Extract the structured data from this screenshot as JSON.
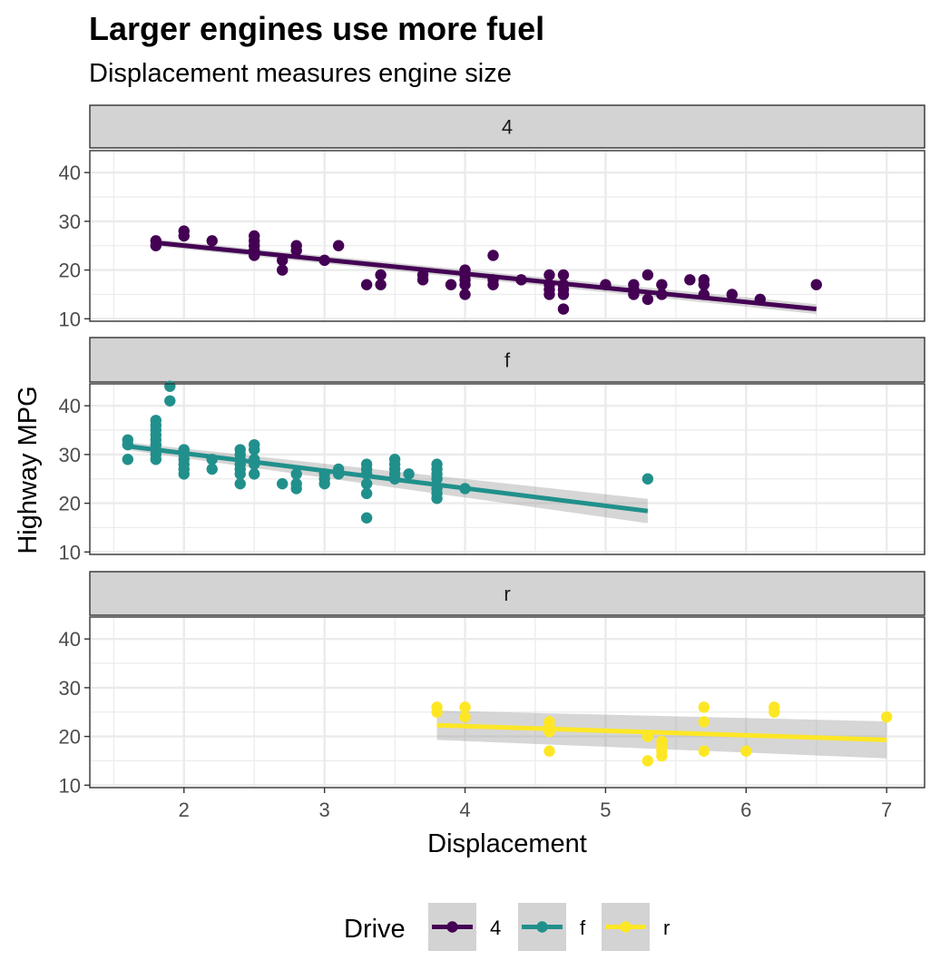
{
  "chart_data": {
    "type": "scatter",
    "title": "Larger engines use more fuel",
    "subtitle": "Displacement measures engine size",
    "xlabel": "Displacement",
    "ylabel": "Highway MPG",
    "xlim": [
      1.33,
      7.27
    ],
    "ylim": [
      9.5,
      44.5
    ],
    "x_ticks": [
      2,
      3,
      4,
      5,
      6,
      7
    ],
    "y_ticks": [
      10,
      20,
      30,
      40
    ],
    "grid": true,
    "facet_by": "Drive",
    "legend": {
      "title": "Drive",
      "position": "bottom"
    },
    "series": [
      {
        "name": "4",
        "color": "#440154",
        "points": [
          [
            1.8,
            26
          ],
          [
            1.8,
            25
          ],
          [
            2.0,
            28
          ],
          [
            2.0,
            27
          ],
          [
            2.2,
            26
          ],
          [
            2.5,
            27
          ],
          [
            2.5,
            26
          ],
          [
            2.5,
            25
          ],
          [
            2.5,
            24
          ],
          [
            2.5,
            23
          ],
          [
            2.7,
            22
          ],
          [
            2.7,
            20
          ],
          [
            2.8,
            25
          ],
          [
            2.8,
            24
          ],
          [
            3.0,
            22
          ],
          [
            3.1,
            25
          ],
          [
            3.3,
            17
          ],
          [
            3.4,
            19
          ],
          [
            3.4,
            17
          ],
          [
            3.7,
            19
          ],
          [
            3.7,
            18
          ],
          [
            3.9,
            17
          ],
          [
            4.0,
            20
          ],
          [
            4.0,
            19
          ],
          [
            4.0,
            18
          ],
          [
            4.0,
            17
          ],
          [
            4.0,
            15
          ],
          [
            4.2,
            23
          ],
          [
            4.2,
            18
          ],
          [
            4.2,
            17
          ],
          [
            4.4,
            18
          ],
          [
            4.6,
            19
          ],
          [
            4.6,
            17
          ],
          [
            4.6,
            16
          ],
          [
            4.6,
            15
          ],
          [
            4.7,
            19
          ],
          [
            4.7,
            17
          ],
          [
            4.7,
            16
          ],
          [
            4.7,
            15
          ],
          [
            4.7,
            12
          ],
          [
            5.0,
            17
          ],
          [
            5.2,
            17
          ],
          [
            5.2,
            16
          ],
          [
            5.2,
            15
          ],
          [
            5.3,
            19
          ],
          [
            5.3,
            14
          ],
          [
            5.4,
            17
          ],
          [
            5.4,
            15
          ],
          [
            5.6,
            18
          ],
          [
            5.7,
            18
          ],
          [
            5.7,
            17
          ],
          [
            5.7,
            15
          ],
          [
            5.9,
            15
          ],
          [
            6.1,
            14
          ],
          [
            6.5,
            17
          ]
        ],
        "trend": {
          "x": [
            1.8,
            6.5
          ],
          "y": [
            25.6,
            12.0
          ],
          "ci_halfwidth": [
            0.7,
            1.0
          ]
        }
      },
      {
        "name": "f",
        "color": "#21908c",
        "points": [
          [
            1.6,
            33
          ],
          [
            1.6,
            32
          ],
          [
            1.6,
            29
          ],
          [
            1.8,
            37
          ],
          [
            1.8,
            36
          ],
          [
            1.8,
            35
          ],
          [
            1.8,
            34
          ],
          [
            1.8,
            33
          ],
          [
            1.8,
            32
          ],
          [
            1.8,
            31
          ],
          [
            1.8,
            30
          ],
          [
            1.8,
            29
          ],
          [
            1.9,
            44
          ],
          [
            1.9,
            41
          ],
          [
            2.0,
            31
          ],
          [
            2.0,
            30
          ],
          [
            2.0,
            29
          ],
          [
            2.0,
            28
          ],
          [
            2.0,
            27
          ],
          [
            2.0,
            26
          ],
          [
            2.2,
            29
          ],
          [
            2.2,
            27
          ],
          [
            2.4,
            31
          ],
          [
            2.4,
            30
          ],
          [
            2.4,
            29
          ],
          [
            2.4,
            28
          ],
          [
            2.4,
            27
          ],
          [
            2.4,
            26
          ],
          [
            2.4,
            24
          ],
          [
            2.5,
            32
          ],
          [
            2.5,
            31
          ],
          [
            2.5,
            29
          ],
          [
            2.5,
            28
          ],
          [
            2.5,
            26
          ],
          [
            2.7,
            24
          ],
          [
            2.8,
            26
          ],
          [
            2.8,
            24
          ],
          [
            2.8,
            23
          ],
          [
            3.0,
            26
          ],
          [
            3.0,
            25
          ],
          [
            3.0,
            24
          ],
          [
            3.1,
            27
          ],
          [
            3.1,
            26
          ],
          [
            3.3,
            28
          ],
          [
            3.3,
            27
          ],
          [
            3.3,
            26
          ],
          [
            3.3,
            24
          ],
          [
            3.3,
            22
          ],
          [
            3.3,
            17
          ],
          [
            3.5,
            29
          ],
          [
            3.5,
            28
          ],
          [
            3.5,
            27
          ],
          [
            3.5,
            26
          ],
          [
            3.5,
            25
          ],
          [
            3.6,
            26
          ],
          [
            3.8,
            28
          ],
          [
            3.8,
            27
          ],
          [
            3.8,
            26
          ],
          [
            3.8,
            25
          ],
          [
            3.8,
            23
          ],
          [
            3.8,
            22
          ],
          [
            3.8,
            21
          ],
          [
            4.0,
            23
          ],
          [
            5.3,
            25
          ]
        ],
        "trend": {
          "x": [
            1.6,
            5.3
          ],
          "y": [
            31.7,
            18.4
          ],
          "ci_halfwidth": [
            0.8,
            2.5
          ]
        }
      },
      {
        "name": "r",
        "color": "#fde725",
        "points": [
          [
            3.8,
            26
          ],
          [
            3.8,
            25
          ],
          [
            4.0,
            26
          ],
          [
            4.0,
            24
          ],
          [
            4.6,
            23
          ],
          [
            4.6,
            22
          ],
          [
            4.6,
            21
          ],
          [
            4.6,
            17
          ],
          [
            5.3,
            20
          ],
          [
            5.3,
            15
          ],
          [
            5.4,
            19
          ],
          [
            5.4,
            18
          ],
          [
            5.4,
            17
          ],
          [
            5.4,
            16
          ],
          [
            5.7,
            26
          ],
          [
            5.7,
            23
          ],
          [
            5.7,
            17
          ],
          [
            6.0,
            17
          ],
          [
            6.2,
            26
          ],
          [
            6.2,
            25
          ],
          [
            7.0,
            24
          ]
        ],
        "trend": {
          "x": [
            3.8,
            7.0
          ],
          "y": [
            22.3,
            19.3
          ],
          "ci_halfwidth": [
            3.0,
            3.8
          ]
        }
      }
    ]
  }
}
